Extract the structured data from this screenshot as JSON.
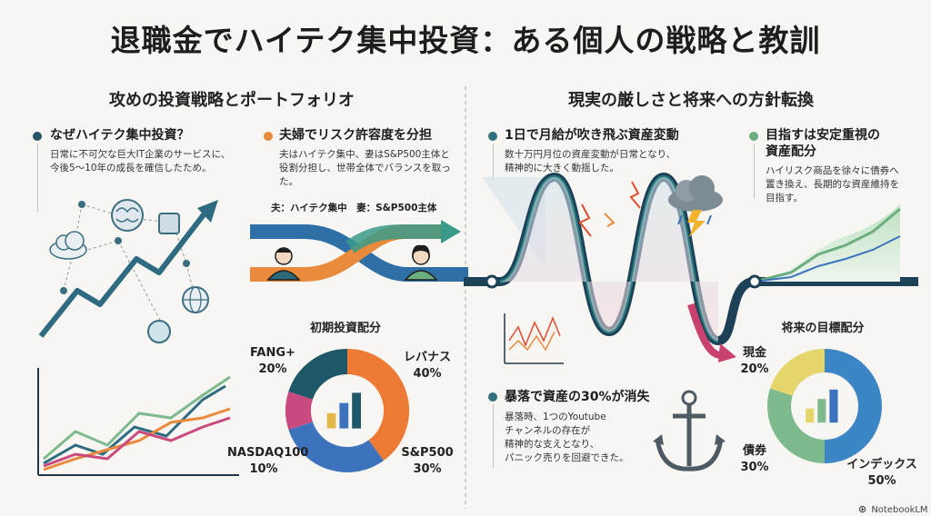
{
  "title": "退職金でハイテク集中投資：ある個人の戦略と教訓",
  "left_section": {
    "heading": "攻めの投資戦略とポートフォリオ"
  },
  "right_section": {
    "heading": "現実の厳しさと将来への方針転換"
  },
  "cards": {
    "why_hitech": {
      "heading": "なぜハイテク集中投資？",
      "body": [
        "日常に不可欠な巨大IT企業のサービスに、",
        "今後5〜10年の成長を確信したため。"
      ]
    },
    "split_risk": {
      "heading": "夫婦でリスク許容度を分担",
      "body": [
        "夫はハイテク集中、妻はS&P500主体と",
        "役割分担し、世帯全体でバランスを取った。"
      ],
      "note": "夫：ハイテク集中　妻：S&P500主体"
    },
    "volatility": {
      "heading": "1日で月給が吹き飛ぶ資産変動",
      "body": [
        "数十万円月位の資産変動が日常となり、",
        "精神的に大きく動揺した。"
      ]
    },
    "stable": {
      "heading_lines": [
        "目指すは安定重視の",
        "資産配分"
      ],
      "body": [
        "ハイリスク商品を徐々に債券へ",
        "置き換え、長期的な資産維持を",
        "目指す。"
      ]
    },
    "crash": {
      "heading": "暴落で資産の30%が消失",
      "body": [
        "暴落時、1つのYoutube",
        "チャンネルの存在が",
        "精神的な支えとなり、",
        "パニック売りを回避できた。"
      ]
    }
  },
  "chart_data": [
    {
      "type": "pie",
      "title": "初期投資配分",
      "categories": [
        "レバナス",
        "S&P500",
        "NASDAQ100",
        "FANG+"
      ],
      "values": [
        40,
        30,
        10,
        20
      ],
      "labels": [
        "40%",
        "30%",
        "10%",
        "20%"
      ],
      "colors": [
        "#ec7a35",
        "#3d73bd",
        "#c94a7e",
        "#1e5868"
      ]
    },
    {
      "type": "pie",
      "title": "将来の目標配分",
      "categories": [
        "インデックス",
        "債券",
        "現金"
      ],
      "values": [
        50,
        30,
        20
      ],
      "labels": [
        "50%",
        "30%",
        "20%"
      ],
      "colors": [
        "#3d86c6",
        "#7fba8e",
        "#e4d66a"
      ]
    }
  ],
  "brand": "NotebookLM",
  "colors": {
    "teal": "#2f6f7e",
    "orange": "#e98a3c",
    "blue": "#3d73bd",
    "green": "#6aae80",
    "pink": "#c94a7e"
  }
}
